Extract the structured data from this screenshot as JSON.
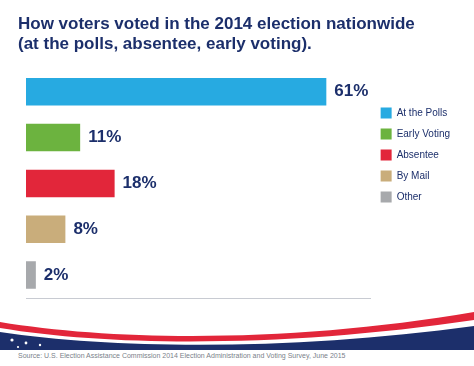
{
  "chart_data": {
    "type": "bar",
    "orientation": "horizontal",
    "title": "How voters voted in the 2014 election nationwide (at the polls, absentee, early voting).",
    "categories": [
      "At the Polls",
      "Early Voting",
      "Absentee",
      "By Mail",
      "Other"
    ],
    "values": [
      61,
      11,
      18,
      8,
      2
    ],
    "value_labels": [
      "61%",
      "11%",
      "18%",
      "8%",
      "2%"
    ],
    "colors": [
      "#27aae1",
      "#6cb33f",
      "#e2263a",
      "#c9ad7b",
      "#a7a9ac"
    ],
    "xlim": [
      0,
      70
    ],
    "data_labels": true,
    "tick_labels": false,
    "grid": false,
    "legend": "right",
    "source": "Source: U.S. Election Assistance Commission 2014 Election Administration and Voting Survey, June 2015"
  }
}
